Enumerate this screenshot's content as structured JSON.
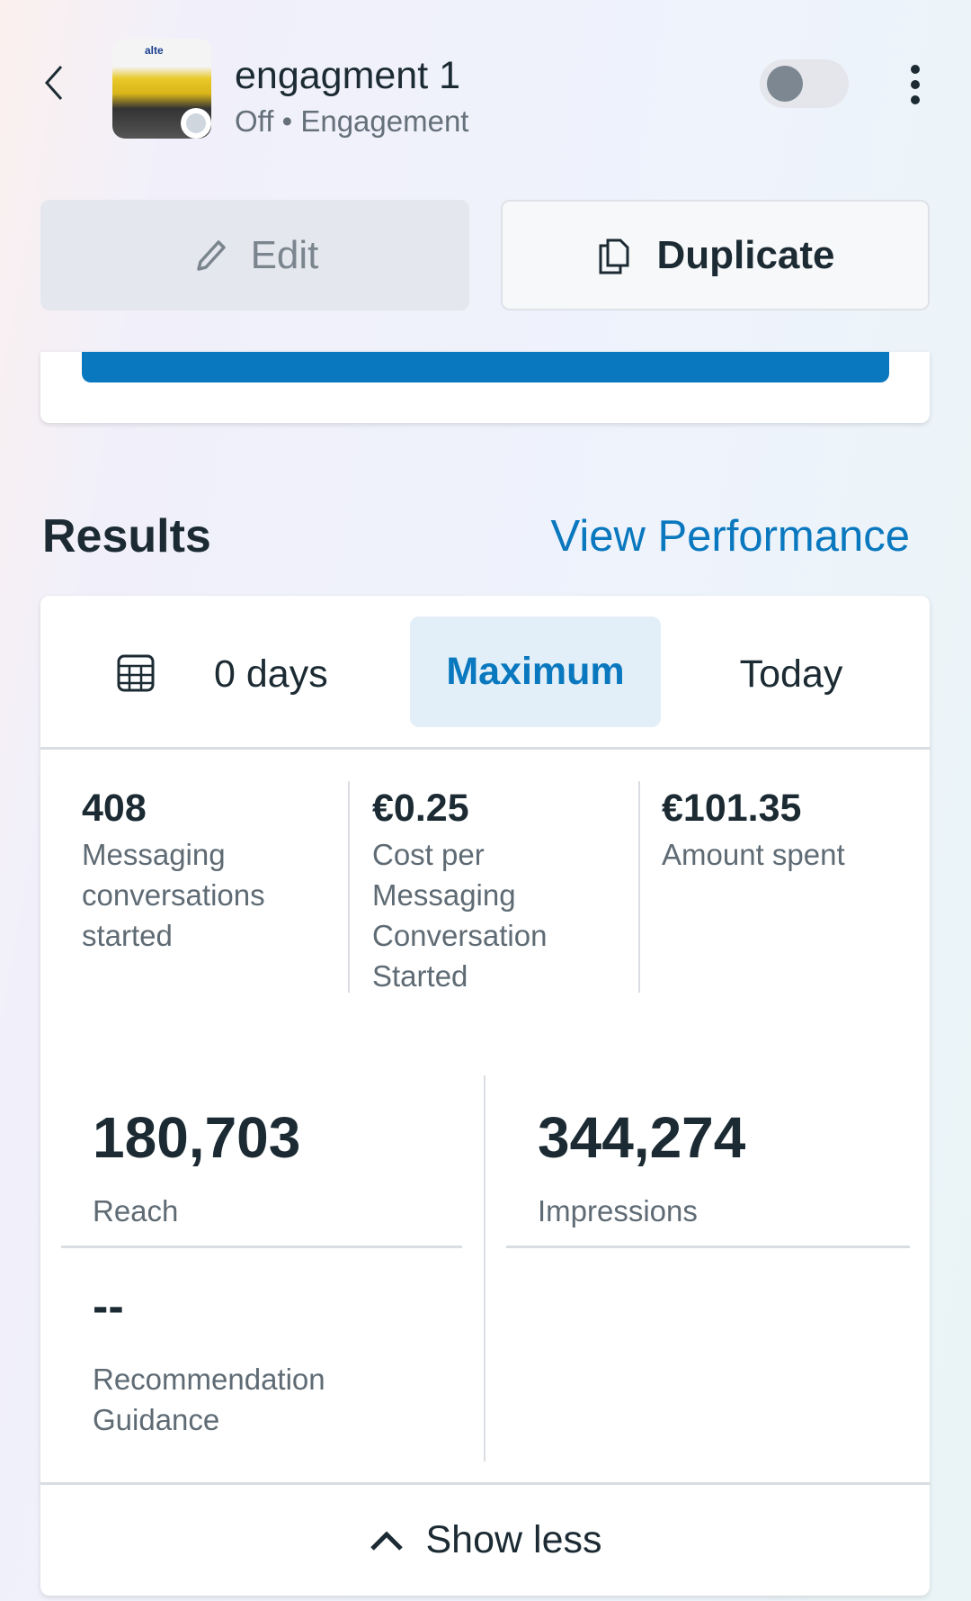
{
  "header": {
    "title": "engagment 1",
    "status": "Off",
    "separator": "•",
    "objective": "Engagement",
    "thumbnail_text": "alte",
    "toggle_on": false
  },
  "actions": {
    "edit_label": "Edit",
    "duplicate_label": "Duplicate"
  },
  "results": {
    "heading": "Results",
    "view_performance_label": "View Performance"
  },
  "date_tabs": {
    "custom_label": "0 days",
    "tabs": [
      {
        "label": "Maximum",
        "selected": true
      },
      {
        "label": "Today",
        "selected": false
      }
    ]
  },
  "metrics": [
    {
      "value": "408",
      "label": "Messaging conversations started"
    },
    {
      "value": "€0.25",
      "label": "Cost per Messaging Conversation Started"
    },
    {
      "value": "€101.35",
      "label": "Amount spent"
    }
  ],
  "big_metrics": [
    {
      "value": "180,703",
      "label": "Reach"
    },
    {
      "value": "344,274",
      "label": "Impressions"
    },
    {
      "value": "--",
      "label": "Recommendation Guidance"
    }
  ],
  "footer": {
    "show_less_label": "Show less"
  },
  "colors": {
    "accent": "#0a78be",
    "primary_bar": "#0a78be",
    "selected_tab_bg": "#e3eff8"
  }
}
